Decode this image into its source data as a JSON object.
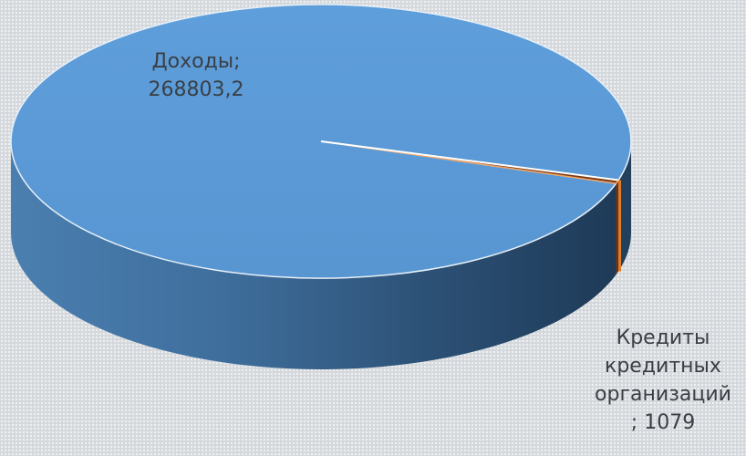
{
  "chart_data": {
    "type": "pie",
    "title": "",
    "slices": [
      {
        "label": "Доходы",
        "value_text": "268803,2",
        "value": 268803.2,
        "color": "#5b9bd5"
      },
      {
        "label": "Кредиты кредитных организаций",
        "value_text": "1079",
        "value": 1079,
        "color": "#7a3b12"
      }
    ],
    "labels": {
      "dohody": {
        "line1": "Доходы;",
        "line2": "268803,2"
      },
      "kredity": {
        "line1": "Кредиты",
        "line2": "кредитных",
        "line3": "организаций",
        "line4": "; 1079"
      }
    },
    "legend": "none",
    "style": "3d"
  }
}
